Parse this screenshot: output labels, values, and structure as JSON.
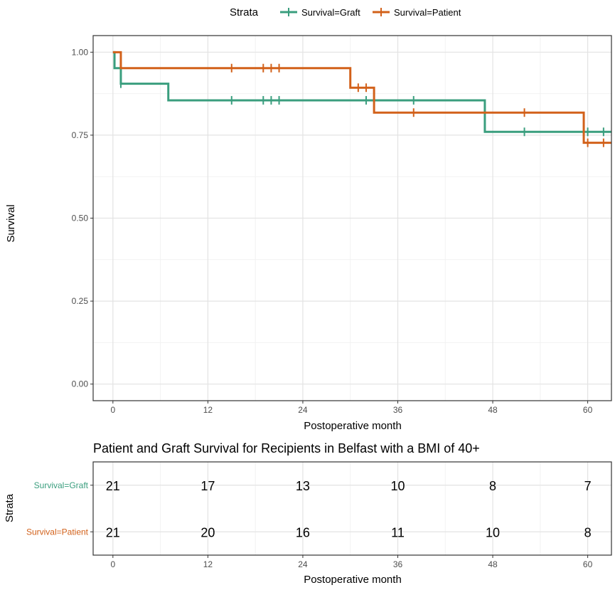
{
  "chart_data": [
    {
      "type": "line",
      "subtype": "kaplan-meier-step",
      "title": "",
      "xlabel": "Postoperative month",
      "ylabel": "Survival",
      "xlim": [
        -2.5,
        63
      ],
      "ylim": [
        -0.05,
        1.05
      ],
      "x_ticks": [
        0,
        12,
        24,
        36,
        48,
        60
      ],
      "x_tick_labels": [
        "0",
        "12",
        "24",
        "36",
        "48",
        "60"
      ],
      "y_ticks": [
        0,
        0.25,
        0.5,
        0.75,
        1
      ],
      "y_tick_labels": [
        "0.00",
        "0.25",
        "0.50",
        "0.75",
        "1.00"
      ],
      "grid": true,
      "legend": {
        "title": "Strata",
        "position": "top",
        "entries": [
          "Survival=Graft",
          "Survival=Patient"
        ]
      },
      "series": [
        {
          "name": "Survival=Graft",
          "color": "#3a9e7e",
          "steps": [
            [
              0,
              1.0
            ],
            [
              0.2,
              0.952
            ],
            [
              1.0,
              0.905
            ],
            [
              7.0,
              0.855
            ],
            [
              47.0,
              0.76
            ],
            [
              63,
              0.76
            ]
          ],
          "censor_times": [
            1.0,
            15,
            19,
            20,
            21,
            32,
            38,
            52,
            60,
            62
          ]
        },
        {
          "name": "Survival=Patient",
          "color": "#d2611a",
          "steps": [
            [
              0,
              1.0
            ],
            [
              1.0,
              0.952
            ],
            [
              30.0,
              0.893
            ],
            [
              33.0,
              0.818
            ],
            [
              59.5,
              0.727
            ],
            [
              63,
              0.727
            ]
          ],
          "censor_times": [
            15,
            19,
            20,
            21,
            31,
            32,
            38,
            52,
            60,
            62
          ]
        }
      ]
    },
    {
      "type": "table",
      "title": "Patient and Graft Survival for Recipients in Belfast with a BMI of 40+",
      "xlabel": "Postoperative month",
      "ylabel": "Strata",
      "x_ticks": [
        0,
        12,
        24,
        36,
        48,
        60
      ],
      "x_tick_labels": [
        "0",
        "12",
        "24",
        "36",
        "48",
        "60"
      ],
      "rows": [
        {
          "name": "Survival=Graft",
          "color": "#3a9e7e",
          "values": [
            "21",
            "17",
            "13",
            "10",
            "8",
            "7"
          ]
        },
        {
          "name": "Survival=Patient",
          "color": "#d2611a",
          "values": [
            "21",
            "20",
            "16",
            "11",
            "10",
            "8"
          ]
        }
      ]
    }
  ]
}
